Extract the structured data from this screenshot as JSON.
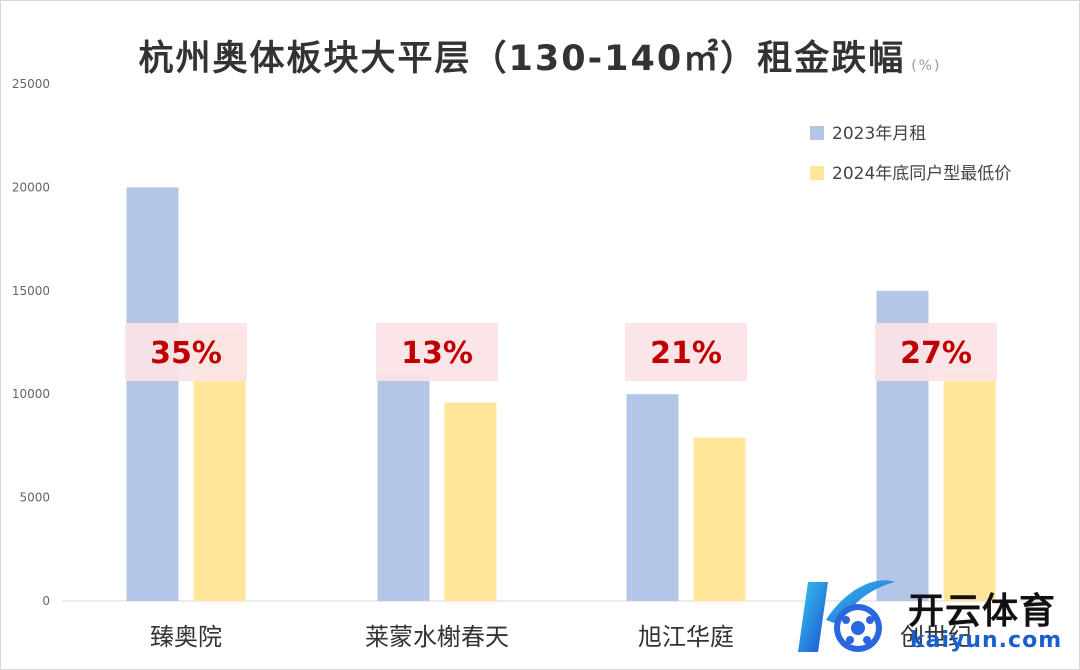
{
  "chart_data": {
    "type": "bar",
    "title": "杭州奥体板块大平层（130-140㎡）租金跌幅",
    "title_unit": "(%)",
    "categories": [
      "臻奥院",
      "莱蒙水榭春天",
      "旭江华庭",
      "创世纪"
    ],
    "series": [
      {
        "name": "2023年月租",
        "values": [
          20000,
          11000,
          10000,
          15000
        ],
        "color": "#b4c6e7"
      },
      {
        "name": "2024年底同户型最低价",
        "values": [
          13000,
          9600,
          7900,
          11000
        ],
        "color": "#ffe699"
      }
    ],
    "annotations": [
      "35%",
      "13%",
      "21%",
      "27%"
    ],
    "yticks": [
      "0",
      "5000",
      "10000",
      "15000",
      "20000",
      "25000"
    ],
    "ylim": [
      0,
      25000
    ],
    "grid": false,
    "legend_position": "top-right"
  },
  "watermark": {
    "text_cn": "开云体育",
    "text_en": "kaiyun.com"
  }
}
